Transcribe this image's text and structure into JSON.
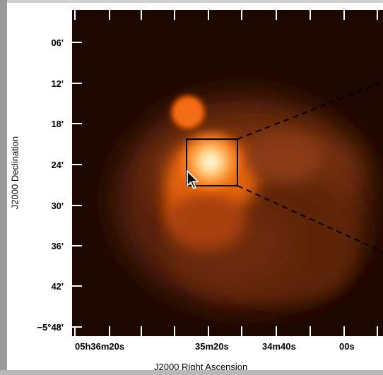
{
  "axes": {
    "y_title": "J2000 Declination",
    "x_title": "J2000 Right Ascension",
    "y_ticks": [
      "06'",
      "12'",
      "18'",
      "24'",
      "30'",
      "36'",
      "42'",
      "−5°48'"
    ],
    "x_ticks": [
      "05h36m20s",
      "35m20s",
      "34m40s",
      "00s"
    ]
  },
  "colors": {
    "background": "#1c0800",
    "emission_bright": "#fff4d8",
    "emission_mid": "#ff7a10",
    "box": "#000000"
  },
  "overlays": {
    "box_icon": "zoom-region-box",
    "cursor_icon": "arrow-cursor-icon"
  }
}
